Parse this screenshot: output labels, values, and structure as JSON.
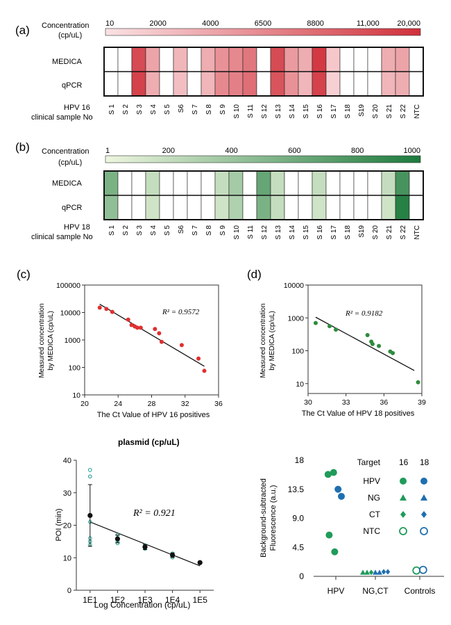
{
  "panel_labels": {
    "a": "(a)",
    "b": "(b)",
    "c": "(c)",
    "d": "(d)"
  },
  "colors": {
    "red_low": "#fbe2e4",
    "red_high": "#d0303a",
    "green_low": "#eef6df",
    "green_high": "#1d7a3c",
    "red_dot": "#e03030",
    "green_dot": "#2e8b3e",
    "teal": "#1a9a8a",
    "blue": "#1f6fb0",
    "green_marker": "#1f9b5a"
  },
  "chart_data": [
    {
      "id": "a",
      "type": "heatmap",
      "colorbar": {
        "title_line1": "Concentration",
        "title_line2": "(cp/uL)",
        "ticks": [
          "10",
          "2000",
          "4000",
          "6500",
          "8800",
          "11,000",
          "20,000"
        ]
      },
      "rows": [
        "MEDICA",
        "qPCR"
      ],
      "xlabel_line1": "HPV 16",
      "xlabel_line2": "clinical sample No",
      "columns": [
        "S 1",
        "S 2",
        "S 3",
        "S 4",
        "S 5",
        "S6",
        "S 7",
        "S 8",
        "S 9",
        "S 10",
        "S 11",
        "S 12",
        "S 13",
        "S 14",
        "S 15",
        "S 16",
        "S 17",
        "S 18",
        "S19",
        "S 20",
        "S 21",
        "S 22",
        "NTC"
      ],
      "values": [
        [
          0,
          0,
          0.85,
          0.35,
          0,
          0.25,
          0,
          0.3,
          0.45,
          0.5,
          0.6,
          0,
          0.85,
          0.4,
          0.3,
          0.95,
          0.15,
          0,
          0,
          0,
          0.3,
          0.35,
          0
        ],
        [
          0,
          0,
          0.9,
          0.3,
          0,
          0.2,
          0,
          0.25,
          0.5,
          0.55,
          0.65,
          0,
          0.8,
          0.45,
          0.25,
          0.9,
          0.1,
          0,
          0,
          0,
          0.25,
          0.3,
          0
        ]
      ]
    },
    {
      "id": "b",
      "type": "heatmap",
      "colorbar": {
        "title_line1": "Concentration",
        "title_line2": "(cp/uL)",
        "ticks": [
          "1",
          "200",
          "400",
          "600",
          "800",
          "1000"
        ]
      },
      "rows": [
        "MEDICA",
        "qPCR"
      ],
      "xlabel_line1": "HPV 18",
      "xlabel_line2": "clinical sample No",
      "columns": [
        "S 1",
        "S 2",
        "S 3",
        "S 4",
        "S 5",
        "S6",
        "S 7",
        "S 8",
        "S 9",
        "S 10",
        "S 11",
        "S 12",
        "S 13",
        "S 14",
        "S 15",
        "S 16",
        "S 17",
        "S 18",
        "S19",
        "S 20",
        "S 21",
        "S 22",
        "NTC"
      ],
      "values": [
        [
          0.55,
          0,
          0,
          0.2,
          0,
          0,
          0,
          0,
          0.2,
          0.35,
          0,
          0.65,
          0.2,
          0,
          0,
          0.2,
          0,
          0,
          0,
          0,
          0.2,
          0.8,
          0
        ],
        [
          0.45,
          0,
          0,
          0.15,
          0,
          0,
          0,
          0,
          0.15,
          0.3,
          0,
          0.55,
          0.2,
          0,
          0,
          0.15,
          0,
          0,
          0,
          0,
          0.15,
          0.95,
          0
        ]
      ]
    },
    {
      "id": "c",
      "type": "scatter",
      "ylabel_line1": "Measured concentration",
      "ylabel_line2": "by MEDICA (cp/uL)",
      "xlabel": "The Ct Value of HPV 16 positives",
      "annotation": "R² = 0.9572",
      "xlim": [
        20,
        36
      ],
      "ylim": [
        10,
        100000
      ],
      "yscale": "log",
      "xticks": [
        "20",
        "24",
        "28",
        "32",
        "36"
      ],
      "yticks": [
        "100000",
        "10000",
        "1000",
        "100",
        "10"
      ],
      "points": [
        [
          21.8,
          15000
        ],
        [
          22.6,
          13500
        ],
        [
          23.3,
          10500
        ],
        [
          25.2,
          5500
        ],
        [
          25.6,
          3500
        ],
        [
          26.0,
          3100
        ],
        [
          26.3,
          2800
        ],
        [
          26.7,
          2800
        ],
        [
          28.4,
          2500
        ],
        [
          28.9,
          1750
        ],
        [
          29.2,
          850
        ],
        [
          31.6,
          650
        ],
        [
          33.6,
          210
        ],
        [
          34.3,
          75
        ]
      ],
      "fit": [
        [
          21.8,
          20000
        ],
        [
          34.3,
          110
        ]
      ]
    },
    {
      "id": "d",
      "type": "scatter",
      "ylabel_line1": "Measured concentration",
      "ylabel_line2": "by MEDICA (cp/uL)",
      "xlabel": "The Ct Value of HPV 18 positives",
      "annotation": "R² = 0.9182",
      "xlim": [
        30,
        39
      ],
      "ylim": [
        5,
        10000
      ],
      "yscale": "log",
      "xticks": [
        "30",
        "33",
        "36",
        "39"
      ],
      "yticks": [
        "10000",
        "1000",
        "100",
        "10"
      ],
      "points": [
        [
          30.6,
          700
        ],
        [
          31.7,
          560
        ],
        [
          32.2,
          440
        ],
        [
          34.7,
          300
        ],
        [
          35.0,
          190
        ],
        [
          35.1,
          160
        ],
        [
          35.6,
          140
        ],
        [
          36.5,
          95
        ],
        [
          36.7,
          85
        ],
        [
          38.7,
          11
        ]
      ],
      "fit": [
        [
          30.6,
          1050
        ],
        [
          38.4,
          25
        ]
      ]
    },
    {
      "id": "e",
      "type": "scatter",
      "title": "plasmid (cp/uL)",
      "ylabel": "POI (min)",
      "xlabel": "Log Concentration (cp/uL)",
      "annotation": "R² = 0.921",
      "xlim": [
        0.5,
        5.5
      ],
      "ylim": [
        0,
        40
      ],
      "xticks": [
        "1E1",
        "1E2",
        "1E3",
        "1E4",
        "1E5"
      ],
      "yticks": [
        "40",
        "30",
        "20",
        "10",
        "0"
      ],
      "means": [
        {
          "x": 1,
          "y": 23.0,
          "err": 9.5
        },
        {
          "x": 2,
          "y": 15.8,
          "err": 1.2
        },
        {
          "x": 3,
          "y": 13.3,
          "err": 0.8
        },
        {
          "x": 4,
          "y": 10.8,
          "err": 0.7
        },
        {
          "x": 5,
          "y": 8.5,
          "err": 0.4
        }
      ],
      "replicates": [
        [
          1,
          37
        ],
        [
          1,
          35
        ],
        [
          1,
          21
        ],
        [
          1,
          16
        ],
        [
          1,
          15
        ],
        [
          1,
          14
        ],
        [
          2,
          17
        ],
        [
          2,
          16
        ],
        [
          2,
          15
        ],
        [
          2,
          14.5
        ],
        [
          3,
          13.8
        ],
        [
          3,
          13
        ],
        [
          3,
          12.8
        ],
        [
          4,
          11.3
        ],
        [
          4,
          10.5
        ],
        [
          4,
          10.1
        ],
        [
          5,
          8.6
        ],
        [
          5,
          8.3
        ]
      ],
      "fit": [
        [
          1,
          21.0
        ],
        [
          5,
          7.5
        ]
      ]
    },
    {
      "id": "f",
      "type": "scatter",
      "ylabel_line1": "Background-subtracted",
      "ylabel_line2": "Fluorescence (a.u.)",
      "categories": [
        "HPV",
        "NG,CT",
        "Controls"
      ],
      "yticks": [
        "18",
        "13.5",
        "9.0",
        "4.5",
        "0"
      ],
      "ylim": [
        0,
        18
      ],
      "legend": {
        "title": "Target",
        "col1": "16",
        "col2": "18",
        "rows": [
          "HPV",
          "NG",
          "CT",
          "NTC"
        ]
      },
      "points": [
        {
          "cat": 0,
          "dx": -0.35,
          "y": 15.8,
          "marker": "circle",
          "series": "16"
        },
        {
          "cat": 0,
          "dx": -0.1,
          "y": 16.1,
          "marker": "circle",
          "series": "16"
        },
        {
          "cat": 0,
          "dx": -0.3,
          "y": 6.4,
          "marker": "circle",
          "series": "16"
        },
        {
          "cat": 0,
          "dx": -0.05,
          "y": 3.8,
          "marker": "circle",
          "series": "16"
        },
        {
          "cat": 0,
          "dx": 0.1,
          "y": 13.5,
          "marker": "circle",
          "series": "18"
        },
        {
          "cat": 0,
          "dx": 0.25,
          "y": 12.4,
          "marker": "circle",
          "series": "18"
        },
        {
          "cat": 1,
          "dx": -0.45,
          "y": 0.6,
          "marker": "triangle",
          "series": "16"
        },
        {
          "cat": 1,
          "dx": -0.3,
          "y": 0.6,
          "marker": "triangle",
          "series": "16"
        },
        {
          "cat": 1,
          "dx": -0.15,
          "y": 0.6,
          "marker": "diamond",
          "series": "16"
        },
        {
          "cat": 1,
          "dx": 0.0,
          "y": 0.6,
          "marker": "triangle",
          "series": "18"
        },
        {
          "cat": 1,
          "dx": 0.15,
          "y": 0.6,
          "marker": "triangle",
          "series": "18"
        },
        {
          "cat": 1,
          "dx": 0.3,
          "y": 0.7,
          "marker": "diamond",
          "series": "18"
        },
        {
          "cat": 1,
          "dx": 0.45,
          "y": 0.7,
          "marker": "diamond",
          "series": "18"
        },
        {
          "cat": 2,
          "dx": -0.15,
          "y": 0.9,
          "marker": "open",
          "series": "16"
        },
        {
          "cat": 2,
          "dx": 0.15,
          "y": 1.0,
          "marker": "open",
          "series": "18"
        }
      ]
    }
  ]
}
